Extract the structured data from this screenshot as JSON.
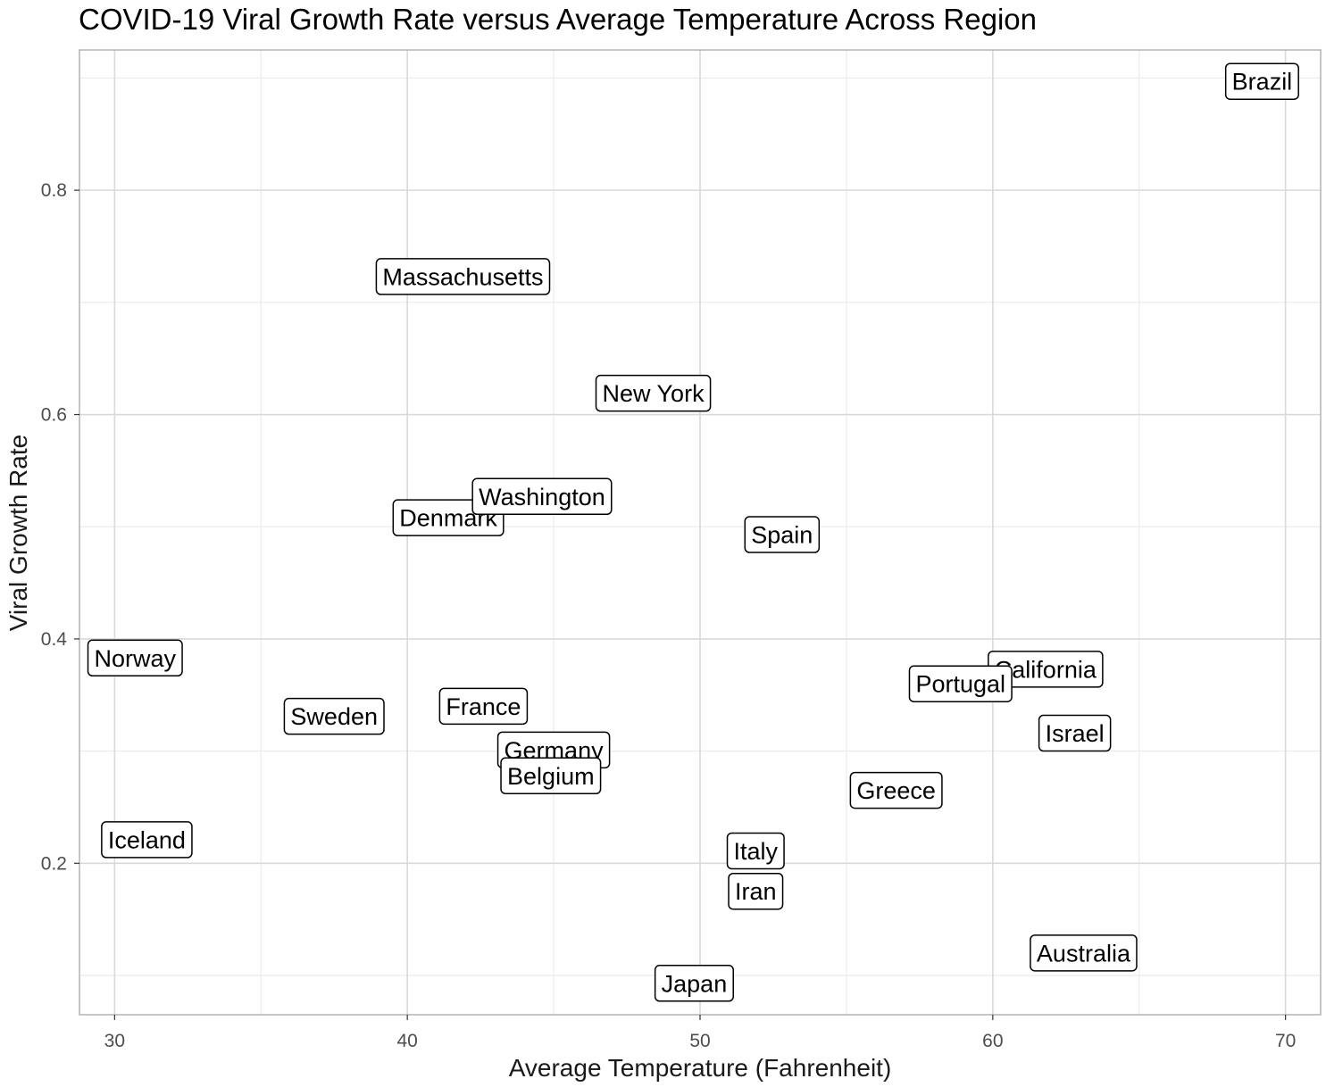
{
  "chart_data": {
    "type": "scatter",
    "title": "COVID-19 Viral Growth Rate versus Average Temperature Across Region",
    "xlabel": "Average Temperature (Fahrenheit)",
    "ylabel": "Viral Growth Rate",
    "xlim": [
      28.8,
      71.2
    ],
    "ylim": [
      0.065,
      0.925
    ],
    "x_major_ticks": [
      30,
      40,
      50,
      60,
      70
    ],
    "x_minor_ticks": [
      35,
      45,
      55,
      65
    ],
    "y_major_ticks": [
      0.2,
      0.4,
      0.6,
      0.8
    ],
    "y_minor_ticks": [
      0.1,
      0.3,
      0.5,
      0.7,
      0.9
    ],
    "x_tick_labels": [
      "30",
      "40",
      "50",
      "60",
      "70"
    ],
    "y_tick_labels": [
      "0.2",
      "0.4",
      "0.6",
      "0.8"
    ],
    "grid": true,
    "label_style": "boxed-text",
    "points": [
      {
        "label": "Brazil",
        "x": 69.2,
        "y": 0.897
      },
      {
        "label": "Massachusetts",
        "x": 41.9,
        "y": 0.723
      },
      {
        "label": "New York",
        "x": 48.4,
        "y": 0.619
      },
      {
        "label": "Denmark",
        "x": 41.4,
        "y": 0.508
      },
      {
        "label": "Washington",
        "x": 44.6,
        "y": 0.527
      },
      {
        "label": "Spain",
        "x": 52.8,
        "y": 0.493
      },
      {
        "label": "Norway",
        "x": 30.7,
        "y": 0.383
      },
      {
        "label": "California",
        "x": 61.8,
        "y": 0.373
      },
      {
        "label": "Portugal",
        "x": 58.9,
        "y": 0.36
      },
      {
        "label": "France",
        "x": 42.6,
        "y": 0.34
      },
      {
        "label": "Sweden",
        "x": 37.5,
        "y": 0.331
      },
      {
        "label": "Israel",
        "x": 62.8,
        "y": 0.316
      },
      {
        "label": "Germany",
        "x": 45.0,
        "y": 0.301
      },
      {
        "label": "Belgium",
        "x": 44.9,
        "y": 0.278
      },
      {
        "label": "Greece",
        "x": 56.7,
        "y": 0.265
      },
      {
        "label": "Iceland",
        "x": 31.1,
        "y": 0.221
      },
      {
        "label": "Italy",
        "x": 51.9,
        "y": 0.211
      },
      {
        "label": "Iran",
        "x": 51.9,
        "y": 0.175
      },
      {
        "label": "Australia",
        "x": 63.1,
        "y": 0.12
      },
      {
        "label": "Japan",
        "x": 49.8,
        "y": 0.093
      }
    ]
  },
  "colors": {
    "background": "#ffffff",
    "panel_border": "#b3b3b3",
    "grid_major": "#d9d9d9",
    "grid_minor": "#ebebeb",
    "tick_text": "#4d4d4d",
    "label_border": "#000000"
  }
}
